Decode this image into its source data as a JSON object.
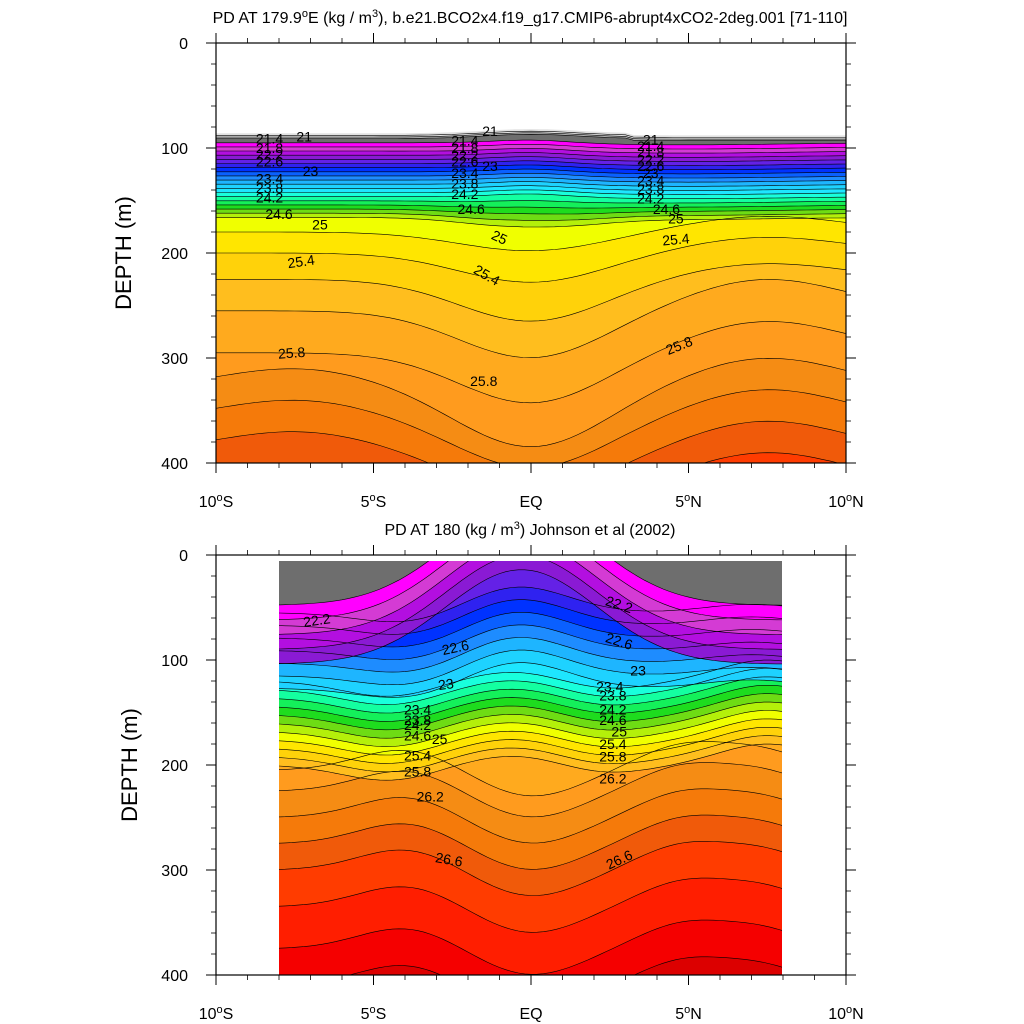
{
  "chart_data": [
    {
      "type": "contour",
      "title_pre": "PD AT 179.9",
      "title_deg": "o",
      "title_mid": "E (kg / m",
      "title_sup": "3",
      "title_post": "), b.e21.BCO2x4.f19_g17.CMIP6-abrupt4xCO2-2deg.001 [71-110]",
      "ylabel": "DEPTH (m)",
      "ylim": [
        400,
        0
      ],
      "yticks": [
        "0",
        "100",
        "200",
        "300",
        "400"
      ],
      "xlim": [
        -10,
        10
      ],
      "xticks": [
        {
          "value": -10,
          "num": "10",
          "deg": "o",
          "hemi": "S"
        },
        {
          "value": -5,
          "num": "5",
          "deg": "o",
          "hemi": "S"
        },
        {
          "value": 0,
          "num": "EQ",
          "deg": "",
          "hemi": ""
        },
        {
          "value": 5,
          "num": "5",
          "deg": "o",
          "hemi": "N"
        },
        {
          "value": 10,
          "num": "10",
          "deg": "o",
          "hemi": "N"
        }
      ],
      "contour_labels": [
        {
          "text": "21",
          "lat": -7.2,
          "depth": 89,
          "rot": 0
        },
        {
          "text": "21.4",
          "lat": -8.3,
          "depth": 91,
          "rot": 0
        },
        {
          "text": "21.8",
          "lat": -8.3,
          "depth": 100,
          "rot": 0
        },
        {
          "text": "22.2",
          "lat": -8.3,
          "depth": 106,
          "rot": 0
        },
        {
          "text": "22.6",
          "lat": -8.3,
          "depth": 113,
          "rot": 0
        },
        {
          "text": "23",
          "lat": -7.0,
          "depth": 122,
          "rot": 0
        },
        {
          "text": "23.4",
          "lat": -8.3,
          "depth": 129,
          "rot": 0
        },
        {
          "text": "23.8",
          "lat": -8.3,
          "depth": 138,
          "rot": 0
        },
        {
          "text": "24.2",
          "lat": -8.3,
          "depth": 147,
          "rot": 0
        },
        {
          "text": "24.6",
          "lat": -8.0,
          "depth": 163,
          "rot": 0
        },
        {
          "text": "25",
          "lat": -6.7,
          "depth": 173,
          "rot": 0
        },
        {
          "text": "25.4",
          "lat": -7.3,
          "depth": 208,
          "rot": -8
        },
        {
          "text": "25.8",
          "lat": -7.6,
          "depth": 295,
          "rot": -4
        },
        {
          "text": "21",
          "lat": -1.3,
          "depth": 84,
          "rot": 0
        },
        {
          "text": "21.4",
          "lat": -2.1,
          "depth": 93,
          "rot": 0
        },
        {
          "text": "21.8",
          "lat": -2.1,
          "depth": 100,
          "rot": 0
        },
        {
          "text": "22.2",
          "lat": -2.1,
          "depth": 107,
          "rot": 0
        },
        {
          "text": "22.6",
          "lat": -2.1,
          "depth": 113,
          "rot": 0
        },
        {
          "text": "23",
          "lat": -1.3,
          "depth": 117,
          "rot": 0
        },
        {
          "text": "23.4",
          "lat": -2.1,
          "depth": 124,
          "rot": 0
        },
        {
          "text": "23.8",
          "lat": -2.1,
          "depth": 134,
          "rot": 0
        },
        {
          "text": "24.2",
          "lat": -2.1,
          "depth": 144,
          "rot": 0
        },
        {
          "text": "24.6",
          "lat": -1.9,
          "depth": 158,
          "rot": 0
        },
        {
          "text": "25",
          "lat": -1.0,
          "depth": 185,
          "rot": 25
        },
        {
          "text": "25.4",
          "lat": -1.4,
          "depth": 221,
          "rot": 30
        },
        {
          "text": "25.8",
          "lat": -1.5,
          "depth": 322,
          "rot": 0
        },
        {
          "text": "21",
          "lat": 3.8,
          "depth": 92,
          "rot": 0
        },
        {
          "text": "21.4",
          "lat": 3.8,
          "depth": 98,
          "rot": 0
        },
        {
          "text": "21.8",
          "lat": 3.8,
          "depth": 104,
          "rot": 0
        },
        {
          "text": "22.2",
          "lat": 3.8,
          "depth": 111,
          "rot": 0
        },
        {
          "text": "22.6",
          "lat": 3.8,
          "depth": 117,
          "rot": 0
        },
        {
          "text": "23",
          "lat": 3.8,
          "depth": 124,
          "rot": 0
        },
        {
          "text": "23.4",
          "lat": 3.8,
          "depth": 131,
          "rot": 0
        },
        {
          "text": "23.8",
          "lat": 3.8,
          "depth": 139,
          "rot": 0
        },
        {
          "text": "24.2",
          "lat": 3.8,
          "depth": 148,
          "rot": 0
        },
        {
          "text": "24.6",
          "lat": 4.3,
          "depth": 158,
          "rot": 0
        },
        {
          "text": "25",
          "lat": 4.6,
          "depth": 167,
          "rot": 0
        },
        {
          "text": "25.4",
          "lat": 4.6,
          "depth": 187,
          "rot": -5
        },
        {
          "text": "25.8",
          "lat": 4.7,
          "depth": 288,
          "rot": -22
        }
      ]
    },
    {
      "type": "contour",
      "title_pre": "PD AT 180 (kg / m",
      "title_sup": "3",
      "title_post": ") Johnson et al (2002)",
      "ylabel": "DEPTH (m)",
      "ylim": [
        400,
        0
      ],
      "yticks": [
        "0",
        "100",
        "200",
        "300",
        "400"
      ],
      "xlim": [
        -10,
        10
      ],
      "xticks": [
        {
          "value": -10,
          "num": "10",
          "deg": "o",
          "hemi": "S"
        },
        {
          "value": -5,
          "num": "5",
          "deg": "o",
          "hemi": "S"
        },
        {
          "value": 0,
          "num": "EQ",
          "deg": "",
          "hemi": ""
        },
        {
          "value": 5,
          "num": "5",
          "deg": "o",
          "hemi": "N"
        },
        {
          "value": 10,
          "num": "10",
          "deg": "o",
          "hemi": "N"
        }
      ],
      "data_lat_range": [
        -8,
        8
      ],
      "contour_labels": [
        {
          "text": "22.2",
          "lat": -6.8,
          "depth": 62,
          "rot": -8
        },
        {
          "text": "22.2",
          "lat": 2.8,
          "depth": 47,
          "rot": 18
        },
        {
          "text": "22.6",
          "lat": -2.4,
          "depth": 88,
          "rot": -12
        },
        {
          "text": "22.6",
          "lat": 2.8,
          "depth": 82,
          "rot": 18
        },
        {
          "text": "23",
          "lat": -2.7,
          "depth": 123,
          "rot": -8
        },
        {
          "text": "23",
          "lat": 3.4,
          "depth": 110,
          "rot": 0
        },
        {
          "text": "23.4",
          "lat": -3.6,
          "depth": 147,
          "rot": 0
        },
        {
          "text": "23.8",
          "lat": -3.6,
          "depth": 157,
          "rot": 0
        },
        {
          "text": "24.2",
          "lat": -3.6,
          "depth": 162,
          "rot": 0
        },
        {
          "text": "24.6",
          "lat": -3.6,
          "depth": 172,
          "rot": 0
        },
        {
          "text": "25",
          "lat": -2.9,
          "depth": 175,
          "rot": 0
        },
        {
          "text": "25.4",
          "lat": -3.6,
          "depth": 191,
          "rot": 0
        },
        {
          "text": "25.8",
          "lat": -3.6,
          "depth": 206,
          "rot": 0
        },
        {
          "text": "26.2",
          "lat": -3.2,
          "depth": 230,
          "rot": 0
        },
        {
          "text": "26.6",
          "lat": -2.6,
          "depth": 290,
          "rot": 10
        },
        {
          "text": "23.4",
          "lat": 2.5,
          "depth": 125,
          "rot": 0
        },
        {
          "text": "23.8",
          "lat": 2.6,
          "depth": 134,
          "rot": 0
        },
        {
          "text": "24.2",
          "lat": 2.6,
          "depth": 147,
          "rot": 0
        },
        {
          "text": "24.6",
          "lat": 2.6,
          "depth": 157,
          "rot": 0
        },
        {
          "text": "25",
          "lat": 2.8,
          "depth": 168,
          "rot": 0
        },
        {
          "text": "25.4",
          "lat": 2.6,
          "depth": 180,
          "rot": 0
        },
        {
          "text": "25.8",
          "lat": 2.6,
          "depth": 192,
          "rot": 0
        },
        {
          "text": "26.2",
          "lat": 2.6,
          "depth": 213,
          "rot": 0
        },
        {
          "text": "26.6",
          "lat": 2.8,
          "depth": 290,
          "rot": -25
        }
      ]
    }
  ],
  "colors": {
    "palette": [
      "#e2e2e2",
      "#b0b0b0",
      "#6e6e6e",
      "#ff00ff",
      "#d43bd4",
      "#b30fe0",
      "#8a1ad4",
      "#6421e6",
      "#2f22f0",
      "#0032ff",
      "#0a60ff",
      "#1e8cff",
      "#1eb5ff",
      "#1ed2ff",
      "#1ee6ff",
      "#19ffdc",
      "#14ffa0",
      "#14f05a",
      "#1edc1e",
      "#6edc14",
      "#b4f00a",
      "#f0ff00",
      "#ffe600",
      "#ffd20a",
      "#ffbe1e",
      "#ffaa1e",
      "#ff9b1e",
      "#f58c14",
      "#f57a0a",
      "#f05a0a",
      "#ff3c00",
      "#ff1e00",
      "#f50000",
      "#dc0000",
      "#c80000"
    ]
  }
}
